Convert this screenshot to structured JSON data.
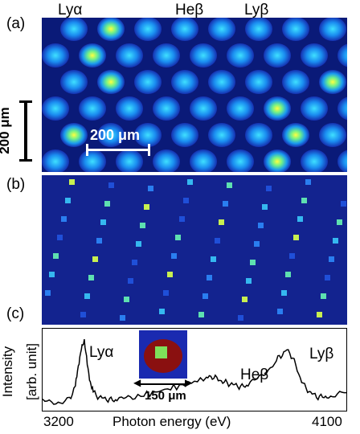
{
  "panels": {
    "a": "(a)",
    "b": "(b)",
    "c": "(c)"
  },
  "lines": {
    "lya": "Lyα",
    "heb": "Heβ",
    "lyb": "Lyβ"
  },
  "scale_bars": {
    "vertical": "200 μm",
    "horizontal": "200 μm",
    "inset": "150 μm"
  },
  "spectrum": {
    "ylabel_line1": "Intensity",
    "ylabel_line2": "[arb. unit]",
    "xlabel": "Photon energy (eV)",
    "x_min_label": "3200",
    "x_max_label": "4100"
  },
  "chart_data": {
    "type": "line",
    "xlabel": "Photon energy (eV)",
    "ylabel": "Intensity [arb. unit]",
    "xlim": [
      3150,
      4170
    ],
    "x": [
      3150,
      3180,
      3210,
      3240,
      3260,
      3270,
      3280,
      3290,
      3300,
      3310,
      3320,
      3340,
      3360,
      3380,
      3400,
      3430,
      3460,
      3500,
      3540,
      3580,
      3620,
      3660,
      3700,
      3720,
      3740,
      3760,
      3780,
      3800,
      3820,
      3840,
      3870,
      3900,
      3930,
      3950,
      3970,
      3990,
      4010,
      4030,
      4050,
      4070,
      4090,
      4110,
      4140,
      4170
    ],
    "y": [
      0.08,
      0.07,
      0.08,
      0.12,
      0.28,
      0.55,
      0.82,
      0.88,
      0.6,
      0.35,
      0.2,
      0.14,
      0.12,
      0.1,
      0.1,
      0.12,
      0.14,
      0.18,
      0.22,
      0.26,
      0.3,
      0.35,
      0.4,
      0.42,
      0.38,
      0.34,
      0.32,
      0.3,
      0.28,
      0.3,
      0.38,
      0.48,
      0.62,
      0.7,
      0.78,
      0.68,
      0.45,
      0.28,
      0.2,
      0.15,
      0.14,
      0.15,
      0.18,
      0.2
    ],
    "ylim": [
      0,
      1
    ]
  }
}
